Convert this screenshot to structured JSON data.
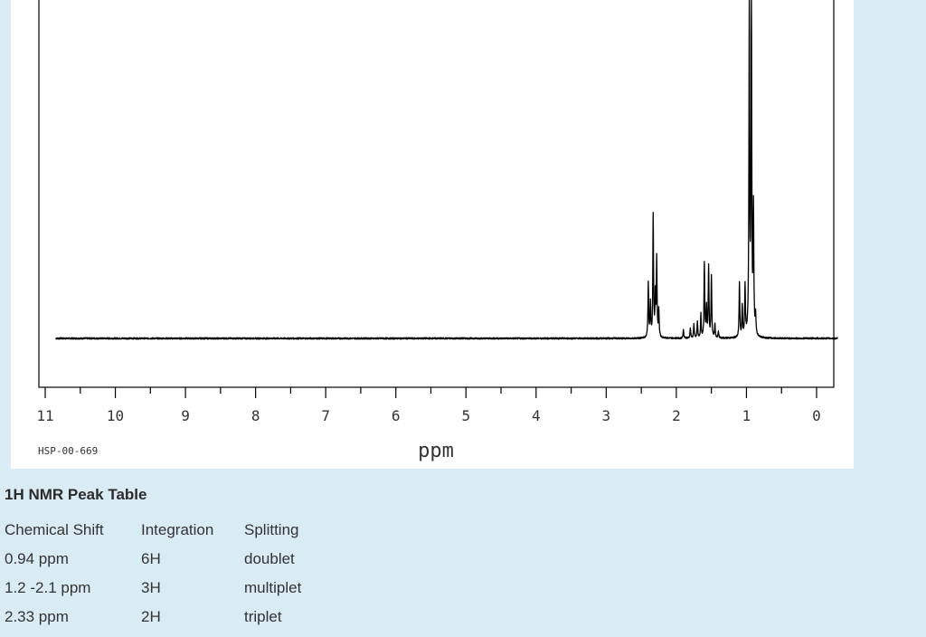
{
  "chart_data": {
    "type": "line",
    "xlabel": "ppm",
    "sample_id": "HSP-00-669",
    "xlim": [
      11.0,
      0.0
    ],
    "x_ticks": [
      11,
      10,
      9,
      8,
      7,
      6,
      5,
      4,
      3,
      2,
      1,
      0
    ],
    "x_minor_ticks": [
      10.5,
      9.5,
      8.5,
      7.5,
      6.5,
      5.5,
      4.5,
      3.5,
      2.5,
      1.5,
      0.5
    ],
    "ylim": [
      0,
      100
    ],
    "baseline": 0,
    "peaks": [
      {
        "x": 2.4,
        "y": 16
      },
      {
        "x": 2.37,
        "y": 10
      },
      {
        "x": 2.33,
        "y": 36
      },
      {
        "x": 2.3,
        "y": 12
      },
      {
        "x": 2.28,
        "y": 23
      },
      {
        "x": 2.25,
        "y": 8
      },
      {
        "x": 1.9,
        "y": 2.5
      },
      {
        "x": 1.8,
        "y": 3
      },
      {
        "x": 1.75,
        "y": 4
      },
      {
        "x": 1.7,
        "y": 5
      },
      {
        "x": 1.65,
        "y": 7
      },
      {
        "x": 1.6,
        "y": 22
      },
      {
        "x": 1.57,
        "y": 9
      },
      {
        "x": 1.54,
        "y": 21
      },
      {
        "x": 1.5,
        "y": 18
      },
      {
        "x": 1.45,
        "y": 4
      },
      {
        "x": 1.4,
        "y": 2
      },
      {
        "x": 1.1,
        "y": 16
      },
      {
        "x": 1.06,
        "y": 9
      },
      {
        "x": 1.02,
        "y": 15
      },
      {
        "x": 0.96,
        "y": 100
      },
      {
        "x": 0.93,
        "y": 100
      },
      {
        "x": 0.9,
        "y": 37
      },
      {
        "x": 0.87,
        "y": 6
      }
    ]
  },
  "peak_table": {
    "title": "1H NMR Peak Table",
    "headers": [
      "Chemical Shift",
      "Integration",
      "Splitting"
    ],
    "rows": [
      [
        "0.94 ppm",
        "6H",
        "doublet"
      ],
      [
        "1.2 -2.1 ppm",
        "3H",
        "multiplet"
      ],
      [
        "2.33 ppm",
        "2H",
        "triplet"
      ]
    ]
  },
  "colors": {
    "background": "#d9ebf5",
    "plot_background": "#ffffff",
    "trace": "#000000"
  }
}
